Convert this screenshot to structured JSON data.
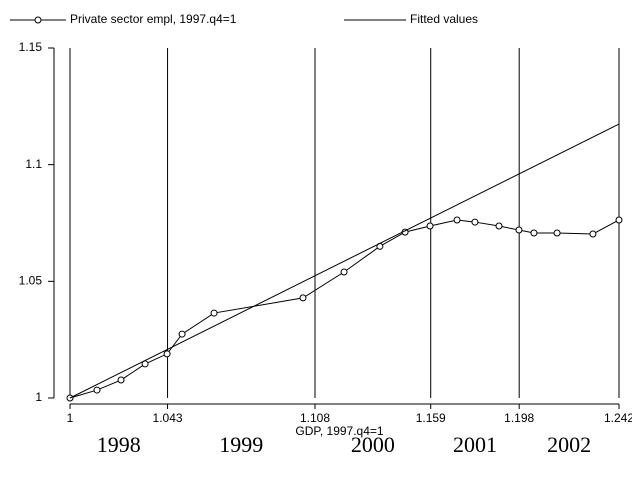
{
  "chart_data": {
    "type": "line",
    "x_label": "GDP, 1997.q4=1",
    "xlim": [
      1,
      1.242
    ],
    "xticks": [
      1,
      1.043,
      1.108,
      1.159,
      1.198,
      1.242
    ],
    "ylim": [
      1,
      1.15
    ],
    "yticks": [
      1,
      1.05,
      1.1,
      1.15
    ],
    "grid": true,
    "year_labels": [
      "1998",
      "1999",
      "2000",
      "2001",
      "2002"
    ],
    "series": [
      {
        "name": "Private sector empl, 1997.q4=1",
        "color": "#000000",
        "markers": true,
        "x": [
          1,
          1.0119,
          1.0225,
          1.0331,
          1.0428,
          1.0494,
          1.0635,
          1.1027,
          1.1208,
          1.1366,
          1.1477,
          1.1587,
          1.1706,
          1.1785,
          1.1891,
          1.1979,
          1.2045,
          1.2147,
          1.2305,
          1.242
        ],
        "values": [
          1,
          1.0034,
          1.0077,
          1.0146,
          1.0189,
          1.0274,
          1.0364,
          1.0429,
          1.054,
          1.065,
          1.0711,
          1.0737,
          1.0763,
          1.0754,
          1.0737,
          1.072,
          1.0707,
          1.0707,
          1.0703,
          1.0763
        ]
      },
      {
        "name": "Fitted values",
        "color": "#000000",
        "markers": false,
        "x": [
          1,
          1.242
        ],
        "values": [
          1,
          1.1174
        ]
      }
    ]
  }
}
